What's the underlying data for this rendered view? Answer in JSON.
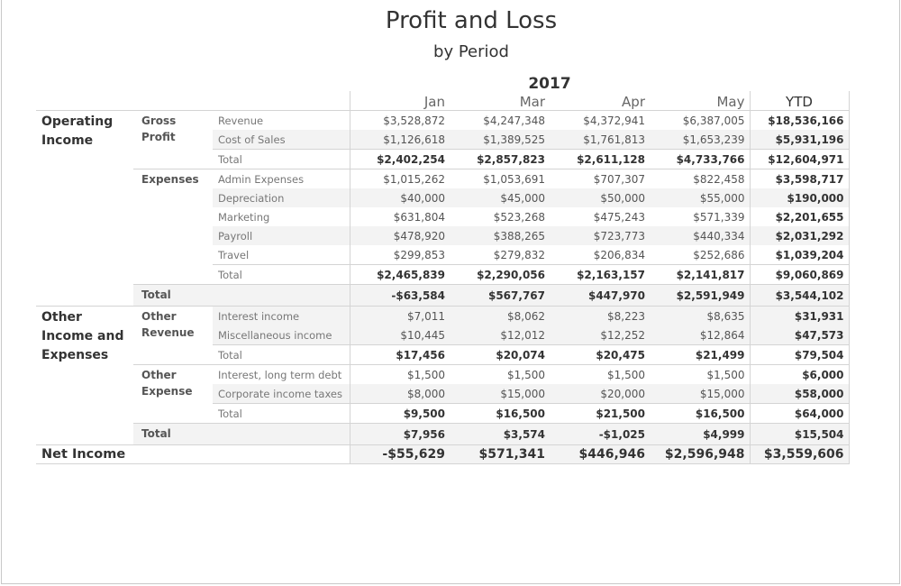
{
  "title": "Profit and Loss",
  "subtitle": "by Period",
  "chart_data": {
    "type": "table",
    "title": "Profit and Loss",
    "subtitle": "by Period",
    "year": "2017",
    "columns": [
      "Jan",
      "Mar",
      "Apr",
      "May",
      "YTD"
    ],
    "rows": [
      {
        "l1": "Operating Income",
        "l2": "Gross Profit",
        "l3": "Revenue",
        "values": [
          "$3,528,872",
          "$4,247,348",
          "$4,372,941",
          "$6,387,005",
          "$18,536,166"
        ]
      },
      {
        "l1": "",
        "l2": "",
        "l3": "Cost of Sales",
        "values": [
          "$1,126,618",
          "$1,389,525",
          "$1,761,813",
          "$1,653,239",
          "$5,931,196"
        ]
      },
      {
        "l1": "",
        "l2": "",
        "l3": "Total",
        "values": [
          "$2,402,254",
          "$2,857,823",
          "$2,611,128",
          "$4,733,766",
          "$12,604,971"
        ]
      },
      {
        "l1": "",
        "l2": "Expenses",
        "l3": "Admin Expenses",
        "values": [
          "$1,015,262",
          "$1,053,691",
          "$707,307",
          "$822,458",
          "$3,598,717"
        ]
      },
      {
        "l1": "",
        "l2": "",
        "l3": "Depreciation",
        "values": [
          "$40,000",
          "$45,000",
          "$50,000",
          "$55,000",
          "$190,000"
        ]
      },
      {
        "l1": "",
        "l2": "",
        "l3": "Marketing",
        "values": [
          "$631,804",
          "$523,268",
          "$475,243",
          "$571,339",
          "$2,201,655"
        ]
      },
      {
        "l1": "",
        "l2": "",
        "l3": "Payroll",
        "values": [
          "$478,920",
          "$388,265",
          "$723,773",
          "$440,334",
          "$2,031,292"
        ]
      },
      {
        "l1": "",
        "l2": "",
        "l3": "Travel",
        "values": [
          "$299,853",
          "$279,832",
          "$206,834",
          "$252,686",
          "$1,039,204"
        ]
      },
      {
        "l1": "",
        "l2": "",
        "l3": "Total",
        "values": [
          "$2,465,839",
          "$2,290,056",
          "$2,163,157",
          "$2,141,817",
          "$9,060,869"
        ]
      },
      {
        "l1": "",
        "l2": "Total",
        "l3": "",
        "values": [
          "-$63,584",
          "$567,767",
          "$447,970",
          "$2,591,949",
          "$3,544,102"
        ]
      },
      {
        "l1": "Other Income and Expenses",
        "l2": "Other Revenue",
        "l3": "Interest income",
        "values": [
          "$7,011",
          "$8,062",
          "$8,223",
          "$8,635",
          "$31,931"
        ]
      },
      {
        "l1": "",
        "l2": "",
        "l3": "Miscellaneous income",
        "values": [
          "$10,445",
          "$12,012",
          "$12,252",
          "$12,864",
          "$47,573"
        ]
      },
      {
        "l1": "",
        "l2": "",
        "l3": "Total",
        "values": [
          "$17,456",
          "$20,074",
          "$20,475",
          "$21,499",
          "$79,504"
        ]
      },
      {
        "l1": "",
        "l2": "Other Expense",
        "l3": "Interest, long term debt",
        "values": [
          "$1,500",
          "$1,500",
          "$1,500",
          "$1,500",
          "$6,000"
        ]
      },
      {
        "l1": "",
        "l2": "",
        "l3": "Corporate income taxes",
        "values": [
          "$8,000",
          "$15,000",
          "$20,000",
          "$15,000",
          "$58,000"
        ]
      },
      {
        "l1": "",
        "l2": "",
        "l3": "Total",
        "values": [
          "$9,500",
          "$16,500",
          "$21,500",
          "$16,500",
          "$64,000"
        ]
      },
      {
        "l1": "",
        "l2": "Total",
        "l3": "",
        "values": [
          "$7,956",
          "$3,574",
          "-$1,025",
          "$4,999",
          "$15,504"
        ]
      },
      {
        "l1": "Net Income",
        "l2": "",
        "l3": "",
        "values": [
          "-$55,629",
          "$571,341",
          "$446,946",
          "$2,596,948",
          "$3,559,606"
        ]
      }
    ]
  }
}
